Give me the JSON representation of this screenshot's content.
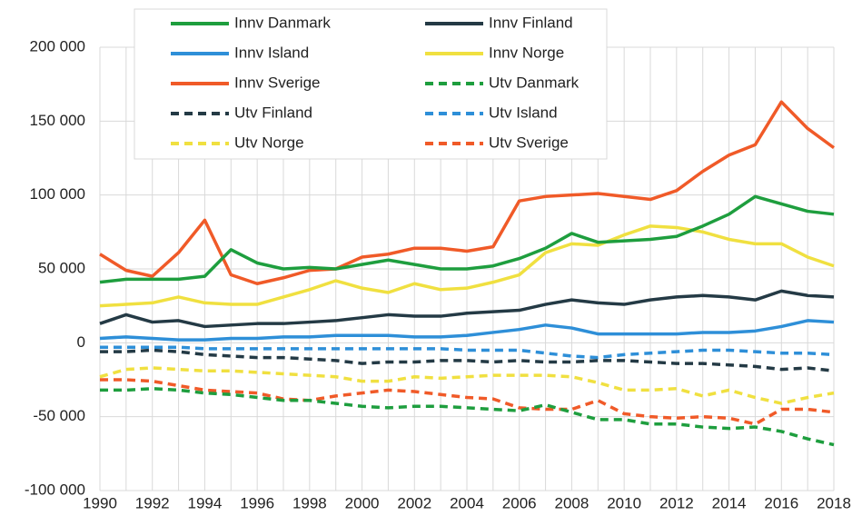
{
  "chart_data": {
    "type": "line",
    "x": [
      1990,
      1991,
      1992,
      1993,
      1994,
      1995,
      1996,
      1997,
      1998,
      1999,
      2000,
      2001,
      2002,
      2003,
      2004,
      2005,
      2006,
      2007,
      2008,
      2009,
      2010,
      2011,
      2012,
      2013,
      2014,
      2015,
      2016,
      2017,
      2018
    ],
    "xlim": [
      1990,
      2018
    ],
    "xticks": [
      1990,
      1992,
      1994,
      1996,
      1998,
      2000,
      2002,
      2004,
      2006,
      2008,
      2010,
      2012,
      2014,
      2016,
      2018
    ],
    "ylim": [
      -100000,
      200000
    ],
    "yticks": [
      {
        "value": -100000,
        "label": "-100 000"
      },
      {
        "value": -50000,
        "label": "-50 000"
      },
      0,
      {
        "value": 50000,
        "label": "50 000"
      },
      {
        "value": 100000,
        "label": "100 000"
      },
      {
        "value": 150000,
        "label": "150 000"
      },
      {
        "value": 200000,
        "label": "200 000"
      }
    ],
    "grid": true,
    "legend": "upper left",
    "series": [
      {
        "name": "Innv Danmark",
        "color": "#1e9e3e",
        "dash": false,
        "values": [
          41000,
          43000,
          43000,
          43000,
          45000,
          63000,
          54000,
          50000,
          51000,
          50000,
          53000,
          56000,
          53000,
          50000,
          50000,
          52000,
          57000,
          64000,
          74000,
          68000,
          69000,
          70000,
          72000,
          79000,
          87000,
          99000,
          94000,
          89000,
          87000
        ]
      },
      {
        "name": "Innv Finland",
        "color": "#243a45",
        "dash": false,
        "values": [
          13000,
          19000,
          14000,
          15000,
          11000,
          12000,
          13000,
          13000,
          14000,
          15000,
          17000,
          19000,
          18000,
          18000,
          20000,
          21000,
          22000,
          26000,
          29000,
          27000,
          26000,
          29000,
          31000,
          32000,
          31000,
          29000,
          35000,
          32000,
          31000
        ]
      },
      {
        "name": "Innv Island",
        "color": "#2e8fd8",
        "dash": false,
        "values": [
          3000,
          4000,
          3000,
          2000,
          2000,
          3000,
          3000,
          4000,
          4000,
          5000,
          5000,
          5000,
          4000,
          4000,
          5000,
          7000,
          9000,
          12000,
          10000,
          6000,
          6000,
          6000,
          6000,
          7000,
          7000,
          8000,
          11000,
          15000,
          14000
        ]
      },
      {
        "name": "Innv Norge",
        "color": "#f0e040",
        "dash": false,
        "values": [
          25000,
          26000,
          27000,
          31000,
          27000,
          26000,
          26000,
          31000,
          36000,
          42000,
          37000,
          34000,
          40000,
          36000,
          37000,
          41000,
          46000,
          61000,
          67000,
          66000,
          73000,
          79000,
          78000,
          75000,
          70000,
          67000,
          67000,
          58000,
          52000
        ]
      },
      {
        "name": "Innv Sverige",
        "color": "#f05a28",
        "dash": false,
        "values": [
          60000,
          49000,
          45000,
          61000,
          83000,
          46000,
          40000,
          44000,
          49000,
          50000,
          58000,
          60000,
          64000,
          64000,
          62000,
          65000,
          96000,
          99000,
          100000,
          101000,
          99000,
          97000,
          103000,
          116000,
          127000,
          134000,
          163000,
          145000,
          132000
        ]
      },
      {
        "name": "Utv Danmark",
        "color": "#1e9e3e",
        "dash": true,
        "values": [
          -32000,
          -32000,
          -31000,
          -32000,
          -34000,
          -35000,
          -37000,
          -39000,
          -39000,
          -41000,
          -43000,
          -44000,
          -43000,
          -43000,
          -44000,
          -45000,
          -46000,
          -42000,
          -47000,
          -52000,
          -52000,
          -55000,
          -55000,
          -57000,
          -58000,
          -57000,
          -60000,
          -65000,
          -69000
        ]
      },
      {
        "name": "Utv Finland",
        "color": "#243a45",
        "dash": true,
        "values": [
          -6000,
          -6000,
          -5000,
          -6000,
          -8000,
          -9000,
          -10000,
          -10000,
          -11000,
          -12000,
          -14000,
          -13000,
          -13000,
          -12000,
          -12000,
          -13000,
          -12000,
          -13000,
          -13000,
          -12000,
          -12000,
          -13000,
          -14000,
          -14000,
          -15000,
          -16000,
          -18000,
          -17000,
          -19000
        ]
      },
      {
        "name": "Utv Island",
        "color": "#2e8fd8",
        "dash": true,
        "values": [
          -3000,
          -3000,
          -3000,
          -3000,
          -4000,
          -4000,
          -4000,
          -4000,
          -4000,
          -4000,
          -4000,
          -4000,
          -4000,
          -4000,
          -5000,
          -5000,
          -5000,
          -7000,
          -9000,
          -10000,
          -8000,
          -7000,
          -6000,
          -5000,
          -5000,
          -6000,
          -7000,
          -7000,
          -8000
        ]
      },
      {
        "name": "Utv Norge",
        "color": "#f0e040",
        "dash": true,
        "values": [
          -23000,
          -18000,
          -17000,
          -18000,
          -19000,
          -19000,
          -20000,
          -21000,
          -22000,
          -23000,
          -26000,
          -26000,
          -23000,
          -24000,
          -23000,
          -22000,
          -22000,
          -22000,
          -23000,
          -27000,
          -32000,
          -32000,
          -31000,
          -36000,
          -32000,
          -37000,
          -41000,
          -37000,
          -34000
        ]
      },
      {
        "name": "Utv Sverige",
        "color": "#f05a28",
        "dash": true,
        "values": [
          -25000,
          -25000,
          -26000,
          -29000,
          -32000,
          -33000,
          -34000,
          -38000,
          -39000,
          -36000,
          -34000,
          -32000,
          -33000,
          -35000,
          -37000,
          -38000,
          -44000,
          -45000,
          -45000,
          -39000,
          -48000,
          -50000,
          -51000,
          -50000,
          -51000,
          -55000,
          -45000,
          -45000,
          -47000
        ]
      }
    ]
  }
}
